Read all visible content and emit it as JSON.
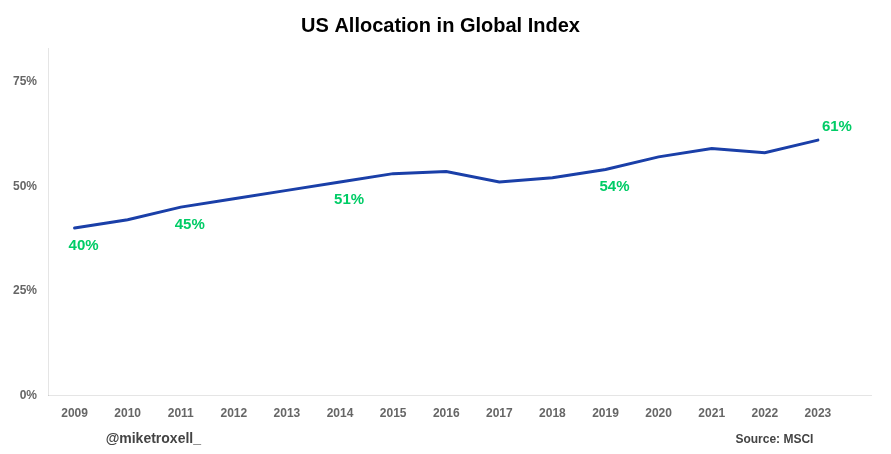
{
  "chart_data": {
    "type": "line",
    "title": "US Allocation in Global Index",
    "x": [
      2009,
      2010,
      2011,
      2012,
      2013,
      2014,
      2015,
      2016,
      2017,
      2018,
      2019,
      2020,
      2021,
      2022,
      2023
    ],
    "values": [
      0.4,
      0.42,
      0.45,
      0.47,
      0.49,
      0.51,
      0.53,
      0.535,
      0.51,
      0.52,
      0.54,
      0.57,
      0.59,
      0.58,
      0.61
    ],
    "color": "#1a3fa8",
    "xlim": [
      2008.5,
      2024.0
    ],
    "xticks": [
      2009,
      2010,
      2011,
      2012,
      2013,
      2014,
      2015,
      2016,
      2017,
      2018,
      2019,
      2020,
      2021,
      2022,
      2023
    ],
    "ylim": [
      0.0,
      0.83
    ],
    "yticks": [
      {
        "value": 0.0,
        "label": "0%"
      },
      {
        "value": 0.25,
        "label": "25%"
      },
      {
        "value": 0.5,
        "label": "50%"
      },
      {
        "value": 0.75,
        "label": "75%"
      }
    ],
    "grid": false,
    "annotations": [
      {
        "x": 2009,
        "y": 0.4,
        "label": "40%",
        "color": "#00cc66"
      },
      {
        "x": 2011,
        "y": 0.45,
        "label": "45%",
        "color": "#00cc66"
      },
      {
        "x": 2014,
        "y": 0.51,
        "label": "51%",
        "color": "#00cc66"
      },
      {
        "x": 2019,
        "y": 0.54,
        "label": "54%",
        "color": "#00cc66"
      },
      {
        "x": 2023,
        "y": 0.61,
        "label": "61%",
        "color": "#00cc66"
      }
    ],
    "watermark": "@miketroxell_",
    "source": "Source: MSCI"
  }
}
